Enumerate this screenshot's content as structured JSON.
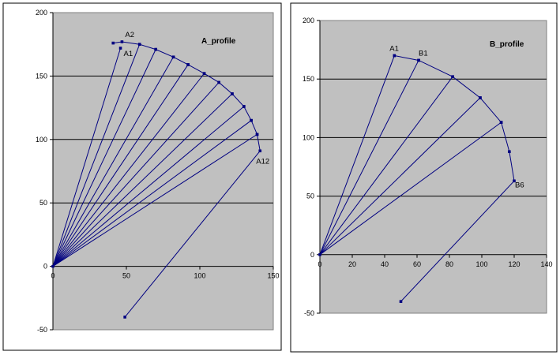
{
  "chart_data": [
    {
      "type": "scatter",
      "title": "A_profile",
      "xlim": [
        0,
        150
      ],
      "ylim": [
        -50,
        200
      ],
      "x_ticks": [
        "0",
        "50",
        "100",
        "150"
      ],
      "y_ticks": [
        "-50",
        "0",
        "50",
        "100",
        "150",
        "200"
      ],
      "grid": "horizontal-major",
      "colors": {
        "plot_bg": "#c0c0c0",
        "line": "#000080",
        "grid": "#000000"
      },
      "origin": [
        0,
        0
      ],
      "far_point": [
        49,
        -40
      ],
      "profile_points": [
        [
          41,
          176
        ],
        [
          47,
          177
        ],
        [
          59,
          175
        ],
        [
          70,
          171
        ],
        [
          82,
          165
        ],
        [
          92,
          159
        ],
        [
          103,
          152
        ],
        [
          113,
          145
        ],
        [
          122,
          136
        ],
        [
          130,
          126
        ],
        [
          135,
          115
        ],
        [
          139,
          104
        ],
        [
          141,
          91
        ]
      ],
      "spokes_from_origin": [
        [
          46,
          172
        ],
        [
          59,
          175
        ],
        [
          70,
          171
        ],
        [
          82,
          165
        ],
        [
          92,
          159
        ],
        [
          103,
          152
        ],
        [
          113,
          145
        ],
        [
          122,
          136
        ],
        [
          130,
          126
        ],
        [
          135,
          115
        ],
        [
          139,
          104
        ]
      ],
      "annotations": [
        {
          "text": "A1",
          "x": 46,
          "y": 172
        },
        {
          "text": "A2",
          "x": 47,
          "y": 177
        },
        {
          "text": "A12",
          "x": 141,
          "y": 91
        }
      ]
    },
    {
      "type": "scatter",
      "title": "B_profile",
      "xlim": [
        0,
        140
      ],
      "ylim": [
        -50,
        200
      ],
      "x_ticks": [
        "0",
        "20",
        "40",
        "60",
        "80",
        "100",
        "120",
        "140"
      ],
      "y_ticks": [
        "-50",
        "0",
        "50",
        "100",
        "150",
        "200"
      ],
      "grid": "horizontal-major",
      "colors": {
        "plot_bg": "#c0c0c0",
        "line": "#000080",
        "grid": "#000000"
      },
      "origin": [
        0,
        0
      ],
      "far_point": [
        50,
        -40
      ],
      "profile_points": [
        [
          46,
          170
        ],
        [
          61,
          166
        ],
        [
          82,
          152
        ],
        [
          99,
          134
        ],
        [
          112,
          113
        ],
        [
          117,
          88
        ],
        [
          120,
          63
        ]
      ],
      "spokes_from_origin": [
        [
          46,
          170
        ],
        [
          61,
          166
        ],
        [
          82,
          152
        ],
        [
          99,
          134
        ],
        [
          112,
          113
        ]
      ],
      "annotations": [
        {
          "text": "A1",
          "x": 46,
          "y": 170
        },
        {
          "text": "B1",
          "x": 61,
          "y": 166
        },
        {
          "text": "B6",
          "x": 120,
          "y": 63
        }
      ]
    }
  ]
}
